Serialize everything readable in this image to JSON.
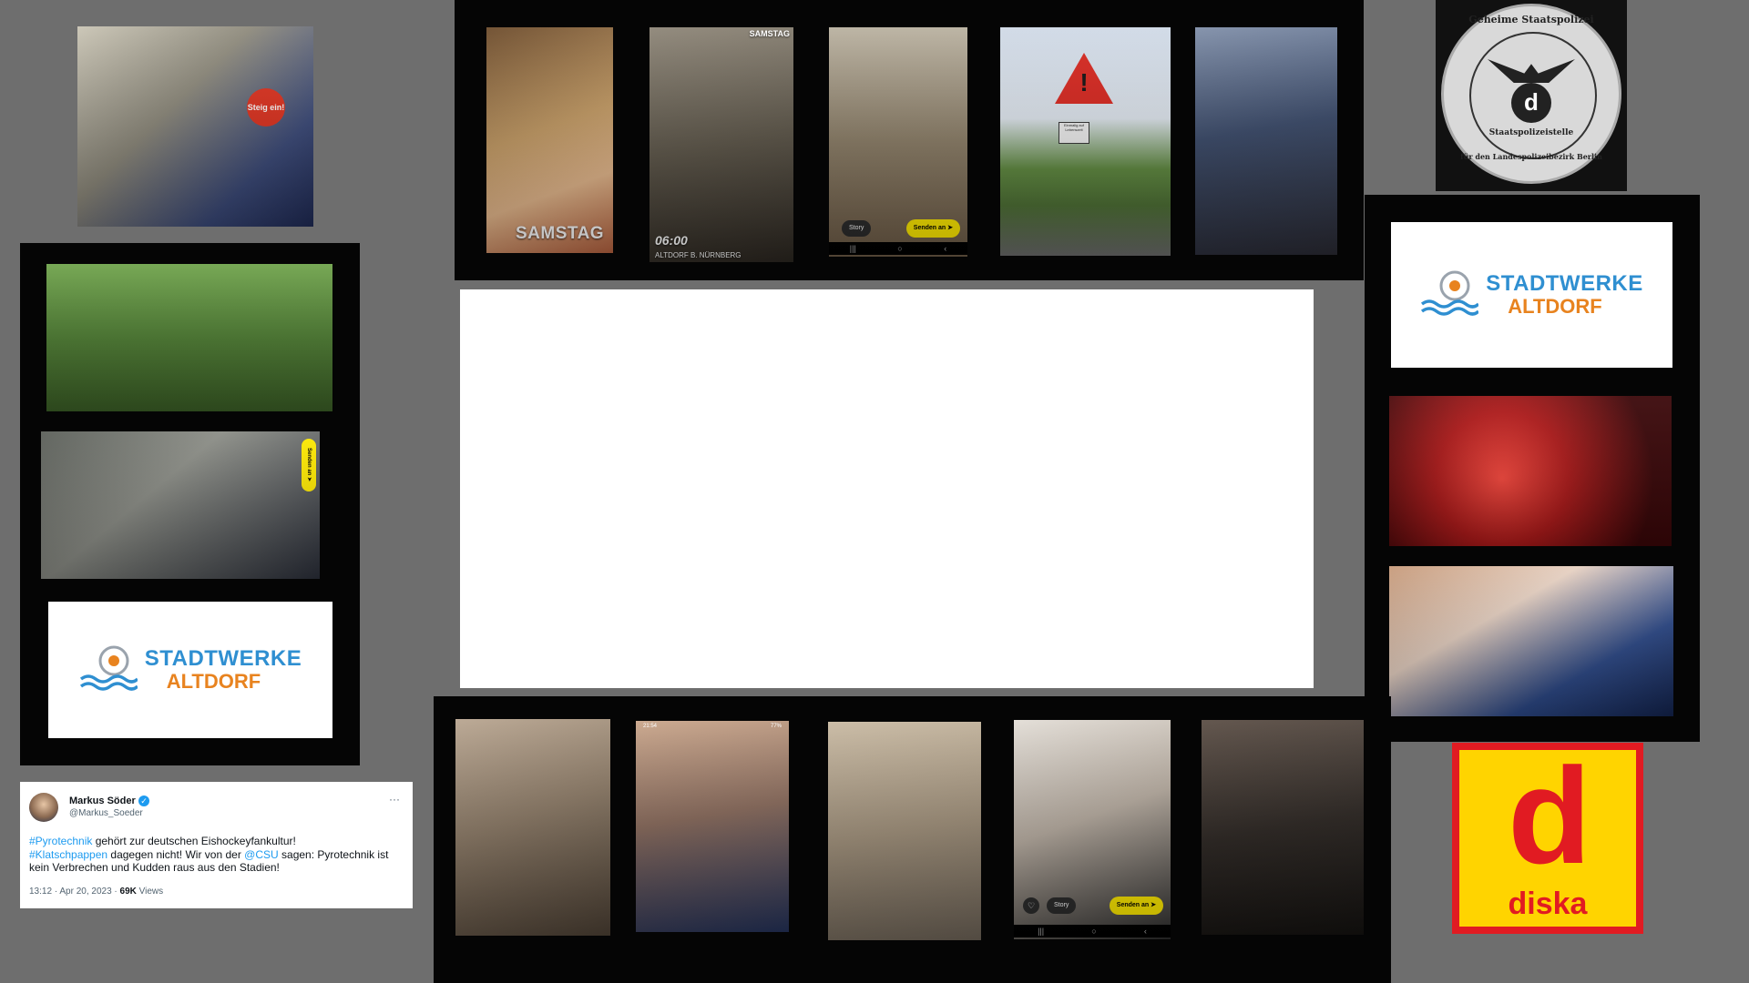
{
  "panels": {
    "top_row": {
      "story_1_text": "SAMSTAG",
      "story_2_time": "06:00",
      "story_2_location": "ALTDORF B. NÜRNBERG",
      "story_2_corner": "SAMSTAG",
      "story_3_story_label": "Story",
      "story_3_send_label": "Senden an ➤"
    },
    "left_column": {
      "send_label": "Senden an ➤"
    },
    "bottom_row": {
      "story_status": "21:54",
      "story_status_right": "77%",
      "story_4_story_label": "Story",
      "story_4_send_label": "Senden an ➤"
    },
    "train_sign": "Steig ein!",
    "sign_plate": "Einmalig auf Lebenszeit"
  },
  "logos": {
    "stadtwerke_line1": "STADTWERKE",
    "stadtwerke_line2": "ALTDORF",
    "seal_text": "Geheime Staatspolizei",
    "seal_bottom": "für den Landespolizeibezirk Berlin",
    "seal_inner": "Staatspolizeistelle",
    "seal_letter": "d",
    "diska_letter": "d",
    "diska_word": "diska"
  },
  "tweet": {
    "name": "Markus Söder",
    "handle": "@Markus_Soeder",
    "more": "···",
    "tag1": "#Pyrotechnik",
    "text1": " gehört zur deutschen Eishockeyfankultur!",
    "tag2": "#Klatschpappen",
    "text2": " dagegen nicht! Wir von der ",
    "tag3": "@CSU",
    "text3": " sagen: Pyrotechnik ist kein Verbrechen und Kudden raus aus den Stadien!",
    "time": "13:12 · Apr 20, 2023 · ",
    "views_count": "69K",
    "views_label": " Views"
  },
  "colors": {
    "background": "#6e6e6e",
    "stadtwerke_blue": "#2f8fd1",
    "stadtwerke_orange": "#e8831f",
    "diska_red": "#e11b22",
    "diska_yellow": "#ffd400",
    "snap_yellow": "#ffea00",
    "tweet_link": "#1d9bf0"
  }
}
